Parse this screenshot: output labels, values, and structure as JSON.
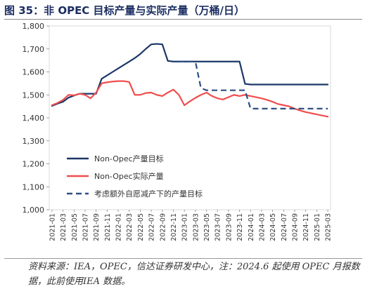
{
  "figure": {
    "title": "图 35：非 OPEC 目标产量与实际产量（万桶/日）",
    "source_note": "资料来源：IEA，OPEC，信达证券研发中心，注：2024.6 起使用 OPEC 月报数据，此前使用IEA 数据。"
  },
  "colors": {
    "target": "#1b3768",
    "actual": "#f04d4d",
    "reduced": "#2e4f82",
    "title": "#1b2e63"
  },
  "chart_data": {
    "type": "line",
    "title": "",
    "xlabel": "",
    "ylabel": "",
    "ylim": [
      1000,
      1800
    ],
    "yticks": [
      "1,000",
      "1,100",
      "1,200",
      "1,300",
      "1,400",
      "1,500",
      "1,600",
      "1,700",
      "1,800"
    ],
    "ytick_values": [
      1000,
      1100,
      1200,
      1300,
      1400,
      1500,
      1600,
      1700,
      1800
    ],
    "x_start": "2021-01",
    "x_end": "2025-03",
    "xticks": [
      "2021-01",
      "2021-03",
      "2021-05",
      "2021-07",
      "2021-09",
      "2021-11",
      "2022-01",
      "2022-03",
      "2022-05",
      "2022-07",
      "2022-09",
      "2022-11",
      "2023-01",
      "2023-03",
      "2023-05",
      "2023-07",
      "2023-09",
      "2023-11",
      "2024-01",
      "2024-03",
      "2024-05",
      "2024-07",
      "2024-09",
      "2024-11",
      "2025-01",
      "2025-03"
    ],
    "legend_position": "lower-left",
    "grid": false,
    "series": [
      {
        "name": "Non-Opec产量目标",
        "style": "solid",
        "points": [
          [
            "2021-01",
            1452
          ],
          [
            "2021-02",
            1462
          ],
          [
            "2021-03",
            1470
          ],
          [
            "2021-04",
            1488
          ],
          [
            "2021-05",
            1497
          ],
          [
            "2021-06",
            1505
          ],
          [
            "2021-07",
            1505
          ],
          [
            "2021-08",
            1505
          ],
          [
            "2021-09",
            1505
          ],
          [
            "2021-10",
            1570
          ],
          [
            "2021-11",
            1585
          ],
          [
            "2021-12",
            1600
          ],
          [
            "2022-01",
            1615
          ],
          [
            "2022-02",
            1630
          ],
          [
            "2022-03",
            1645
          ],
          [
            "2022-04",
            1660
          ],
          [
            "2022-05",
            1678
          ],
          [
            "2022-06",
            1700
          ],
          [
            "2022-07",
            1720
          ],
          [
            "2022-08",
            1722
          ],
          [
            "2022-09",
            1720
          ],
          [
            "2022-10",
            1648
          ],
          [
            "2022-11",
            1645
          ],
          [
            "2022-12",
            1645
          ],
          [
            "2023-01",
            1645
          ],
          [
            "2023-02",
            1645
          ],
          [
            "2023-03",
            1645
          ],
          [
            "2023-04",
            1645
          ],
          [
            "2023-05",
            1645
          ],
          [
            "2023-06",
            1645
          ],
          [
            "2023-07",
            1645
          ],
          [
            "2023-08",
            1645
          ],
          [
            "2023-09",
            1645
          ],
          [
            "2023-10",
            1645
          ],
          [
            "2023-11",
            1645
          ],
          [
            "2023-12",
            1548
          ],
          [
            "2024-01",
            1545
          ],
          [
            "2024-02",
            1545
          ],
          [
            "2024-03",
            1545
          ],
          [
            "2024-04",
            1545
          ],
          [
            "2024-05",
            1545
          ],
          [
            "2024-06",
            1545
          ],
          [
            "2024-07",
            1545
          ],
          [
            "2024-08",
            1545
          ],
          [
            "2024-09",
            1545
          ],
          [
            "2024-10",
            1545
          ],
          [
            "2024-11",
            1545
          ],
          [
            "2024-12",
            1545
          ],
          [
            "2025-01",
            1545
          ],
          [
            "2025-02",
            1545
          ],
          [
            "2025-03",
            1545
          ]
        ]
      },
      {
        "name": "Non-Opec实际产量",
        "style": "solid",
        "points": [
          [
            "2021-01",
            1455
          ],
          [
            "2021-02",
            1465
          ],
          [
            "2021-03",
            1478
          ],
          [
            "2021-04",
            1500
          ],
          [
            "2021-05",
            1498
          ],
          [
            "2021-06",
            1505
          ],
          [
            "2021-07",
            1500
          ],
          [
            "2021-08",
            1485
          ],
          [
            "2021-09",
            1510
          ],
          [
            "2021-10",
            1550
          ],
          [
            "2021-11",
            1555
          ],
          [
            "2021-12",
            1558
          ],
          [
            "2022-01",
            1560
          ],
          [
            "2022-02",
            1560
          ],
          [
            "2022-03",
            1556
          ],
          [
            "2022-04",
            1500
          ],
          [
            "2022-05",
            1500
          ],
          [
            "2022-06",
            1508
          ],
          [
            "2022-07",
            1510
          ],
          [
            "2022-08",
            1500
          ],
          [
            "2022-09",
            1495
          ],
          [
            "2022-10",
            1510
          ],
          [
            "2022-11",
            1523
          ],
          [
            "2022-12",
            1500
          ],
          [
            "2023-01",
            1455
          ],
          [
            "2023-02",
            1472
          ],
          [
            "2023-03",
            1487
          ],
          [
            "2023-04",
            1500
          ],
          [
            "2023-05",
            1510
          ],
          [
            "2023-06",
            1495
          ],
          [
            "2023-07",
            1485
          ],
          [
            "2023-08",
            1480
          ],
          [
            "2023-09",
            1490
          ],
          [
            "2023-10",
            1500
          ],
          [
            "2023-11",
            1495
          ],
          [
            "2023-12",
            1500
          ],
          [
            "2024-01",
            1495
          ],
          [
            "2024-02",
            1490
          ],
          [
            "2024-03",
            1485
          ],
          [
            "2024-04",
            1478
          ],
          [
            "2024-05",
            1470
          ],
          [
            "2024-06",
            1460
          ],
          [
            "2024-07",
            1455
          ],
          [
            "2024-08",
            1450
          ],
          [
            "2024-09",
            1440
          ],
          [
            "2024-10",
            1432
          ],
          [
            "2024-11",
            1425
          ],
          [
            "2024-12",
            1420
          ],
          [
            "2025-01",
            1415
          ],
          [
            "2025-02",
            1410
          ],
          [
            "2025-03",
            1405
          ]
        ]
      },
      {
        "name": "考虑额外自愿减产下的产量目标",
        "style": "dashed",
        "points": [
          [
            "2022-12",
            1645
          ],
          [
            "2023-01",
            1645
          ],
          [
            "2023-02",
            1645
          ],
          [
            "2023-03",
            1645
          ],
          [
            "2023-04",
            1530
          ],
          [
            "2023-05",
            1520
          ],
          [
            "2023-06",
            1520
          ],
          [
            "2023-07",
            1520
          ],
          [
            "2023-08",
            1520
          ],
          [
            "2023-09",
            1520
          ],
          [
            "2023-10",
            1520
          ],
          [
            "2023-11",
            1520
          ],
          [
            "2023-12",
            1520
          ],
          [
            "2024-01",
            1440
          ],
          [
            "2024-02",
            1440
          ],
          [
            "2024-03",
            1440
          ],
          [
            "2024-04",
            1440
          ],
          [
            "2024-05",
            1440
          ],
          [
            "2024-06",
            1440
          ],
          [
            "2024-07",
            1440
          ],
          [
            "2024-08",
            1440
          ],
          [
            "2024-09",
            1440
          ],
          [
            "2024-10",
            1440
          ],
          [
            "2024-11",
            1440
          ],
          [
            "2024-12",
            1440
          ],
          [
            "2025-01",
            1440
          ],
          [
            "2025-02",
            1440
          ],
          [
            "2025-03",
            1440
          ]
        ]
      }
    ]
  }
}
